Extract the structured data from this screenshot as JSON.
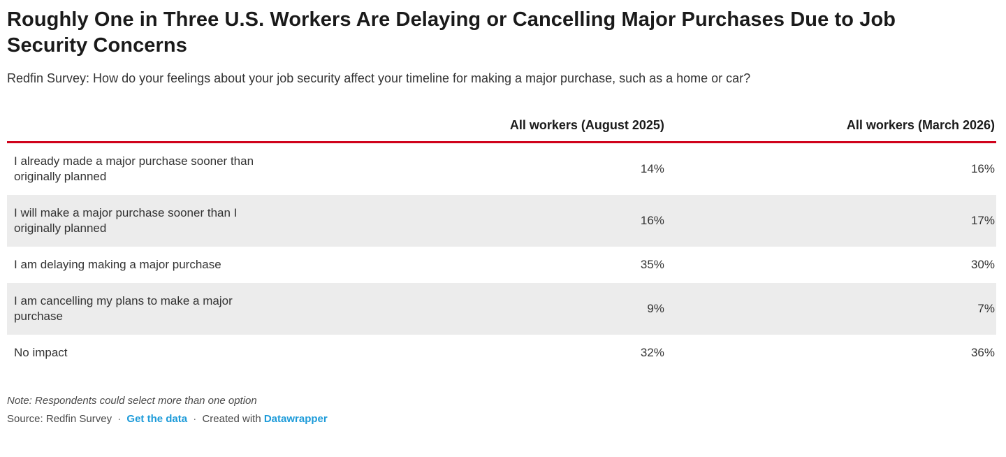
{
  "header": {
    "title": "Roughly One in Three U.S. Workers Are Delaying or Cancelling Major Purchases Due to Job Security Concerns",
    "subtitle": "Redfin Survey: How do your feelings about your job security affect your timeline for making a major purchase, such as a home or car?"
  },
  "chart_data": {
    "type": "table",
    "title": "Roughly One in Three U.S. Workers Are Delaying or Cancelling Major Purchases Due to Job Security Concerns",
    "subtitle": "Redfin Survey: How do your feelings about your job security affect your timeline for making a major purchase, such as a home or car?",
    "columns": [
      "All workers (August 2025)",
      "All workers (March 2026)"
    ],
    "rows": [
      {
        "label": "I already made a major purchase sooner than originally planned",
        "values": [
          "14%",
          "16%"
        ]
      },
      {
        "label": "I will make a major purchase sooner than I originally planned",
        "values": [
          "16%",
          "17%"
        ]
      },
      {
        "label": "I am delaying making a major purchase",
        "values": [
          "35%",
          "30%"
        ]
      },
      {
        "label": "I am cancelling my plans to make a major purchase",
        "values": [
          "9%",
          "7%"
        ]
      },
      {
        "label": "No impact",
        "values": [
          "32%",
          "36%"
        ]
      }
    ],
    "layout": {
      "header_rule_color": "#d0021b",
      "row_stripe_color": "#ececec",
      "value_alignment": "right"
    }
  },
  "footer": {
    "note": "Note: Respondents could select more than one option",
    "source_prefix": "Source: Redfin Survey",
    "separator": "·",
    "get_data_link": "Get the data",
    "created_with": "Created with",
    "datawrapper_link": "Datawrapper"
  },
  "colors": {
    "accent_red": "#d0021b",
    "link_blue": "#1d9bd9",
    "row_stripe": "#ececec",
    "title_text": "#1a1a1a",
    "body_text": "#333333",
    "footer_text": "#494949"
  }
}
